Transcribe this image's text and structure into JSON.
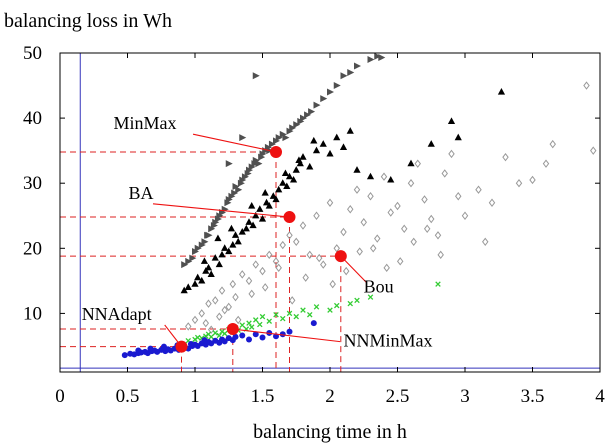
{
  "chart_data": {
    "type": "scatter",
    "title": "",
    "ylabel": "balancing loss in Wh",
    "xlabel": "balancing time in h",
    "xlim": [
      0,
      4
    ],
    "ylim": [
      1,
      50
    ],
    "x_ticks": [
      0,
      0.5,
      1,
      1.5,
      2,
      2.5,
      3,
      3.5,
      4
    ],
    "x_tick_labels": [
      "0",
      "0.5",
      "1",
      "1.5",
      "2",
      "2.5",
      "3",
      "3.5",
      "4"
    ],
    "y_ticks": [
      10,
      20,
      30,
      40,
      50
    ],
    "y_tick_labels": [
      "10",
      "20",
      "30",
      "40",
      "50"
    ],
    "grid": false,
    "reference_lines": {
      "vertical_x": 0.15,
      "horizontal_y": 1.6
    },
    "colors": {
      "minmax": "#505050",
      "ba": "#000000",
      "bou": "#999999",
      "nnminmax": "#33cc33",
      "nnadapt": "#1a1ad0",
      "highlight": "#ee1111",
      "reference": "#3333bb",
      "dashed": "#dd2222"
    },
    "series": [
      {
        "id": "minmax",
        "marker": "triangle-right",
        "x": [
          0.92,
          0.95,
          0.98,
          1.0,
          1.02,
          1.05,
          1.07,
          1.09,
          1.1,
          1.12,
          1.14,
          1.15,
          1.17,
          1.18,
          1.2,
          1.22,
          1.24,
          1.25,
          1.27,
          1.29,
          1.3,
          1.32,
          1.34,
          1.35,
          1.37,
          1.39,
          1.4,
          1.42,
          1.44,
          1.45,
          1.47,
          1.49,
          1.5,
          1.52,
          1.54,
          1.55,
          1.57,
          1.6,
          1.62,
          1.65,
          1.67,
          1.7,
          1.72,
          1.75,
          1.78,
          1.8,
          1.83,
          1.86,
          1.9,
          1.95,
          2.0,
          2.05,
          2.1,
          2.15,
          2.2,
          2.3,
          2.35,
          2.38,
          1.35,
          1.45,
          1.25
        ],
        "y": [
          17.5,
          18.0,
          18.5,
          19.5,
          20.0,
          20.5,
          21.0,
          22.0,
          22.0,
          23.0,
          23.5,
          24.0,
          24.5,
          25.0,
          25.5,
          26.0,
          27.0,
          27.5,
          28.0,
          28.5,
          29.5,
          29.0,
          30.0,
          30.5,
          31.0,
          31.5,
          32.0,
          32.5,
          33.0,
          33.5,
          33.0,
          34.0,
          34.5,
          35.0,
          35.5,
          35.0,
          36.0,
          36.5,
          37.0,
          37.5,
          37.0,
          38.0,
          38.5,
          39.0,
          39.5,
          40.0,
          40.5,
          41.0,
          42.0,
          43.0,
          44.0,
          45.0,
          46.5,
          47.0,
          48.0,
          49.0,
          49.5,
          49.3,
          37.0,
          46.5,
          33.0
        ]
      },
      {
        "id": "ba",
        "marker": "triangle",
        "x": [
          0.92,
          0.95,
          1.0,
          1.02,
          1.05,
          1.08,
          1.1,
          1.12,
          1.15,
          1.18,
          1.2,
          1.22,
          1.25,
          1.28,
          1.3,
          1.32,
          1.35,
          1.38,
          1.4,
          1.43,
          1.45,
          1.48,
          1.5,
          1.53,
          1.55,
          1.58,
          1.6,
          1.62,
          1.65,
          1.68,
          1.7,
          1.73,
          1.75,
          1.78,
          1.8,
          1.85,
          1.9,
          1.95,
          2.0,
          2.05,
          2.1,
          2.2,
          2.3,
          2.45,
          2.6,
          2.75,
          2.9,
          2.95,
          3.27,
          1.07,
          1.17,
          1.27,
          1.42,
          1.52,
          1.67,
          1.77,
          1.88,
          2.15
        ],
        "y": [
          13.5,
          14.0,
          14.5,
          15.5,
          15.0,
          16.5,
          17.0,
          16.0,
          18.5,
          17.5,
          19.0,
          20.0,
          19.5,
          20.5,
          22.0,
          21.0,
          22.5,
          23.0,
          24.0,
          23.5,
          25.0,
          26.0,
          24.5,
          27.0,
          26.5,
          28.0,
          27.5,
          29.0,
          30.0,
          29.5,
          31.0,
          30.5,
          32.0,
          33.0,
          34.0,
          32.5,
          35.0,
          36.0,
          34.5,
          37.0,
          35.5,
          32.0,
          31.0,
          30.5,
          33.0,
          36.0,
          39.5,
          37.0,
          44.0,
          18.0,
          21.5,
          23.0,
          26.5,
          28.5,
          31.5,
          33.5,
          36.5,
          38.0
        ]
      },
      {
        "id": "bou",
        "marker": "diamond",
        "x": [
          0.95,
          1.0,
          1.05,
          1.08,
          1.1,
          1.15,
          1.18,
          1.2,
          1.25,
          1.28,
          1.3,
          1.35,
          1.4,
          1.45,
          1.5,
          1.55,
          1.6,
          1.65,
          1.7,
          1.75,
          1.8,
          1.85,
          1.9,
          1.95,
          2.0,
          2.05,
          2.1,
          2.15,
          2.2,
          2.25,
          2.3,
          2.35,
          2.4,
          2.45,
          2.5,
          2.55,
          2.6,
          2.65,
          2.7,
          2.75,
          2.8,
          2.85,
          2.9,
          2.95,
          3.0,
          3.1,
          3.15,
          3.2,
          3.3,
          3.4,
          3.5,
          3.6,
          3.65,
          3.9,
          3.95,
          1.12,
          1.22,
          1.32,
          1.42,
          1.52,
          1.62,
          1.72,
          1.82,
          1.92,
          2.02,
          2.12,
          2.22,
          2.32,
          2.42,
          2.52,
          2.62,
          2.72,
          2.82
        ],
        "y": [
          8.0,
          9.0,
          10.0,
          8.5,
          11.5,
          12.0,
          9.5,
          13.5,
          11.0,
          14.5,
          12.5,
          16.0,
          15.0,
          17.5,
          16.5,
          19.0,
          18.0,
          20.5,
          22.0,
          21.0,
          23.5,
          19.0,
          25.0,
          17.5,
          27.0,
          20.0,
          22.5,
          26.0,
          29.0,
          24.0,
          28.0,
          21.5,
          31.0,
          25.5,
          26.5,
          23.0,
          30.0,
          33.0,
          27.5,
          24.5,
          22.0,
          31.5,
          34.5,
          28.0,
          25.0,
          29.0,
          21.0,
          27.0,
          34.0,
          30.0,
          30.5,
          33.0,
          36.0,
          45.0,
          35.0,
          7.5,
          10.5,
          9.0,
          13.0,
          14.0,
          17.0,
          12.0,
          15.5,
          18.5,
          14.5,
          16.5,
          19.5,
          20.0,
          17.0,
          18.0,
          21.0,
          23.0,
          19.0
        ]
      },
      {
        "id": "nnminmax",
        "marker": "cross",
        "x": [
          0.95,
          1.0,
          1.02,
          1.05,
          1.08,
          1.1,
          1.12,
          1.15,
          1.18,
          1.2,
          1.22,
          1.25,
          1.28,
          1.3,
          1.32,
          1.35,
          1.38,
          1.4,
          1.42,
          1.45,
          1.48,
          1.5,
          1.55,
          1.6,
          1.65,
          1.7,
          1.75,
          1.8,
          1.85,
          1.9,
          2.0,
          2.05,
          2.15,
          2.2,
          2.3,
          2.8
        ],
        "y": [
          5.8,
          6.0,
          6.3,
          6.2,
          6.5,
          6.8,
          6.4,
          7.0,
          6.6,
          7.2,
          6.9,
          7.5,
          7.1,
          7.8,
          7.4,
          8.2,
          7.6,
          8.5,
          7.9,
          9.0,
          8.3,
          9.5,
          8.8,
          9.8,
          9.2,
          10.0,
          9.5,
          10.5,
          9.8,
          11.0,
          10.5,
          11.2,
          11.5,
          12.0,
          12.5,
          14.5
        ]
      },
      {
        "id": "nnadapt",
        "marker": "circle",
        "x": [
          0.48,
          0.52,
          0.55,
          0.58,
          0.6,
          0.63,
          0.65,
          0.68,
          0.7,
          0.72,
          0.75,
          0.78,
          0.8,
          0.82,
          0.85,
          0.88,
          0.9,
          0.92,
          0.95,
          0.98,
          1.0,
          1.02,
          1.05,
          1.08,
          1.1,
          1.12,
          1.15,
          1.18,
          1.2,
          1.22,
          1.25,
          1.28,
          1.3,
          1.35,
          1.4,
          1.45,
          1.5,
          1.55,
          1.6,
          1.65,
          1.7,
          1.88,
          0.58,
          0.67,
          0.77,
          0.87,
          0.97,
          1.07
        ],
        "y": [
          3.6,
          3.8,
          3.7,
          3.9,
          4.0,
          4.1,
          3.9,
          4.2,
          4.3,
          4.1,
          4.4,
          4.2,
          4.5,
          4.3,
          4.6,
          4.4,
          4.7,
          4.8,
          4.6,
          5.0,
          5.2,
          5.0,
          5.4,
          5.2,
          5.6,
          5.4,
          5.8,
          5.5,
          6.0,
          5.7,
          6.2,
          5.9,
          6.4,
          6.6,
          6.0,
          6.8,
          6.3,
          7.0,
          6.5,
          6.8,
          7.2,
          8.5,
          4.3,
          4.6,
          4.9,
          5.1,
          5.3,
          5.9
        ]
      }
    ],
    "highlights": [
      {
        "id": "minmax",
        "x": 1.6,
        "y": 34.8
      },
      {
        "id": "ba",
        "x": 1.7,
        "y": 24.8
      },
      {
        "id": "bou",
        "x": 2.08,
        "y": 18.8
      },
      {
        "id": "nnminmax",
        "x": 1.28,
        "y": 7.6
      },
      {
        "id": "nnadapt",
        "x": 0.9,
        "y": 4.9
      }
    ],
    "annotations": [
      {
        "id": "minmax",
        "text": "MinMax",
        "x": 0.63,
        "y": 38.3,
        "anchor": "middle"
      },
      {
        "id": "ba",
        "text": "BA",
        "x": 0.6,
        "y": 27.6,
        "anchor": "middle"
      },
      {
        "id": "bou",
        "text": "Bou",
        "x": 2.36,
        "y": 13.2,
        "anchor": "middle"
      },
      {
        "id": "nnminmax",
        "text": "NNMinMax",
        "x": 2.43,
        "y": 4.9,
        "anchor": "middle"
      },
      {
        "id": "nnadapt",
        "text": "NNAdapt",
        "x": 0.42,
        "y": 9.0,
        "anchor": "middle"
      }
    ]
  }
}
